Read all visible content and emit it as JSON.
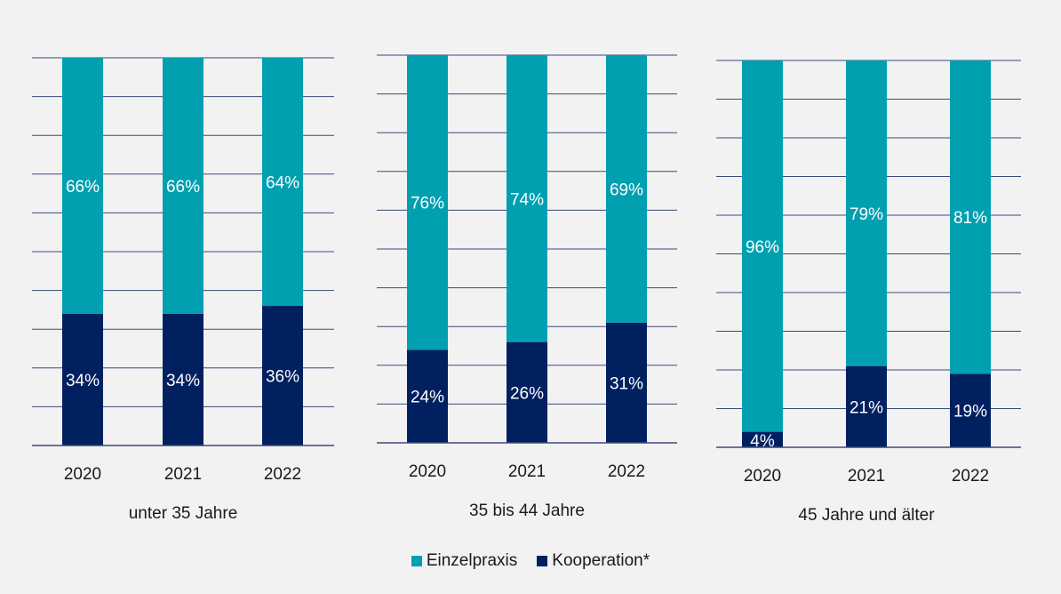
{
  "colors": {
    "einzelpraxis": "#00a0b0",
    "kooperation": "#002060",
    "grid": "#3c4a7a",
    "background": "#f2f2f2"
  },
  "chart_data": [
    {
      "type": "bar",
      "stacked": true,
      "group_label": "unter 35 Jahre",
      "categories": [
        "2020",
        "2021",
        "2022"
      ],
      "ylim": [
        0,
        100
      ],
      "series": [
        {
          "name": "Kooperation*",
          "values": [
            34,
            34,
            36
          ],
          "labels": [
            "34%",
            "34%",
            "36%"
          ]
        },
        {
          "name": "Einzelpraxis",
          "values": [
            66,
            66,
            64
          ],
          "labels": [
            "66%",
            "66%",
            "64%"
          ]
        }
      ]
    },
    {
      "type": "bar",
      "stacked": true,
      "group_label": "35 bis 44 Jahre",
      "categories": [
        "2020",
        "2021",
        "2022"
      ],
      "ylim": [
        0,
        100
      ],
      "series": [
        {
          "name": "Kooperation*",
          "values": [
            24,
            26,
            31
          ],
          "labels": [
            "24%",
            "26%",
            "31%"
          ]
        },
        {
          "name": "Einzelpraxis",
          "values": [
            76,
            74,
            69
          ],
          "labels": [
            "76%",
            "74%",
            "69%"
          ]
        }
      ]
    },
    {
      "type": "bar",
      "stacked": true,
      "group_label": "45 Jahre und älter",
      "categories": [
        "2020",
        "2021",
        "2022"
      ],
      "ylim": [
        0,
        100
      ],
      "series": [
        {
          "name": "Kooperation*",
          "values": [
            4,
            21,
            19
          ],
          "labels": [
            "4%",
            "21%",
            "19%"
          ]
        },
        {
          "name": "Einzelpraxis",
          "values": [
            96,
            79,
            81
          ],
          "labels": [
            "96%",
            "79%",
            "81%"
          ]
        }
      ]
    }
  ],
  "legend": {
    "position": "bottom-center",
    "items": [
      {
        "label": "Einzelpraxis"
      },
      {
        "label": "Kooperation*"
      }
    ]
  }
}
